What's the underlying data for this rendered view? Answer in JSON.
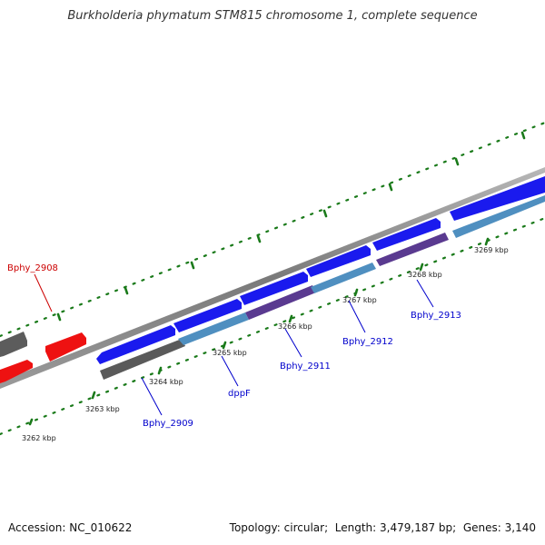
{
  "title": "Burkholderia phymatum STM815 chromosome 1, complete sequence",
  "footer": {
    "accession_label": "Accession:",
    "accession": "NC_010622",
    "topology_label": "Topology:",
    "topology": "circular",
    "length_label": "Length:",
    "length": "3,479,187 bp",
    "genes_label": "Genes:",
    "genes": "3,140"
  },
  "colors": {
    "backbone": "#8a8a8a",
    "forward_gene": "#1a1aee",
    "reverse_gene_dark": "#5a5a5a",
    "reverse_gene_blue": "#4f8fc0",
    "reverse_gene_purple": "#5a3a90",
    "highlight_gene": "#ee1111",
    "tick": "#1a7a1a",
    "label_blue": "#0000cc",
    "label_red": "#cc0000"
  },
  "scale": {
    "tick_labels": [
      "3262 kbp",
      "3263 kbp",
      "3264 kbp",
      "3265 kbp",
      "3266 kbp",
      "3267 kbp",
      "3268 kbp",
      "3269 kbp"
    ]
  },
  "genes": [
    {
      "label": "Bphy_2908",
      "strand": "forward",
      "style": "highlight"
    },
    {
      "label": "Bphy_2909",
      "strand": "reverse",
      "style": "dark"
    },
    {
      "label": "dppF",
      "strand": "reverse",
      "style": "blue"
    },
    {
      "label": "Bphy_2911",
      "strand": "reverse",
      "style": "blue"
    },
    {
      "label": "Bphy_2912",
      "strand": "reverse",
      "style": "purple"
    },
    {
      "label": "Bphy_2913",
      "strand": "reverse",
      "style": "purple"
    }
  ]
}
